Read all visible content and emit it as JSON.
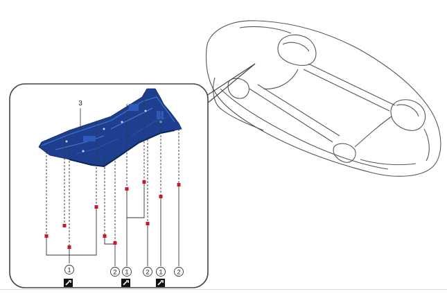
{
  "figure": {
    "corner_ref": "",
    "part_label": "3",
    "callouts": [
      "1",
      "2",
      "1",
      "2",
      "1",
      "2"
    ],
    "torque_icon_count": 3,
    "icon_names": [
      "vehicle-underside-outline",
      "undercover-panel",
      "fastener-marker",
      "torque-wrench-icon"
    ],
    "colors": {
      "panel": "#1e3f8f",
      "panel_dark": "#14307a",
      "panel_light": "#2f5ab8",
      "fastener": "#c8182a",
      "line": "#333333",
      "inset_border": "#444444"
    }
  }
}
